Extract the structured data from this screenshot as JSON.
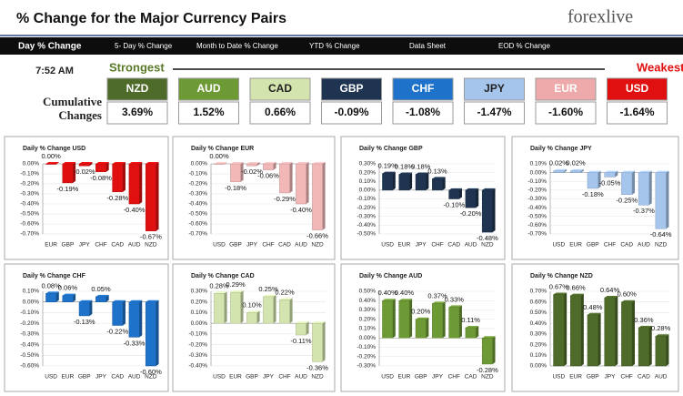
{
  "header": {
    "title": "% Change for the Major Currency Pairs",
    "logo": "forexlive"
  },
  "tabs": [
    "Day % Change",
    "5- Day % Change",
    "Month to Date % Change",
    "YTD % Change",
    "Data Sheet",
    "EOD % Change"
  ],
  "summary": {
    "time": "7:52 AM",
    "strongest": "Strongest",
    "weakest": "Weakest",
    "label": "Cumulative Changes",
    "currencies": [
      {
        "name": "NZD",
        "value": "3.69%",
        "color": "#4f6b2a",
        "text_color": "#ffffff"
      },
      {
        "name": "AUD",
        "value": "1.52%",
        "color": "#6e9a36",
        "text_color": "#ffffff"
      },
      {
        "name": "CAD",
        "value": "0.66%",
        "color": "#d4e4ae",
        "text_color": "#222222"
      },
      {
        "name": "GBP",
        "value": "-0.09%",
        "color": "#1f3450",
        "text_color": "#ffffff"
      },
      {
        "name": "CHF",
        "value": "-1.08%",
        "color": "#1f72c9",
        "text_color": "#ffffff"
      },
      {
        "name": "JPY",
        "value": "-1.47%",
        "color": "#a6c5ec",
        "text_color": "#222222"
      },
      {
        "name": "EUR",
        "value": "-1.60%",
        "color": "#eeaaaa",
        "text_color": "#ffffff"
      },
      {
        "name": "USD",
        "value": "-1.64%",
        "color": "#e01010",
        "text_color": "#ffffff"
      }
    ]
  },
  "chart_data": [
    {
      "type": "bar",
      "title": "Daily % Change USD",
      "color": "#e01010",
      "categories": [
        "EUR",
        "GBP",
        "JPY",
        "CHF",
        "CAD",
        "AUD",
        "NZD"
      ],
      "values": [
        0.0,
        -0.19,
        -0.02,
        -0.08,
        -0.28,
        -0.4,
        -0.67
      ],
      "value_labels": [
        "0.00%",
        "-0.19%",
        "-0.02%",
        "-0.08%",
        "-0.28%",
        "-0.40%",
        "-0.67%"
      ],
      "ylim": [
        -0.7,
        0.0
      ],
      "yticks": [
        {
          "value": 0.0,
          "label": "0.00%"
        },
        {
          "value": -0.1,
          "label": "-0.10%"
        },
        {
          "value": -0.2,
          "label": "-0.20%"
        },
        {
          "value": -0.3,
          "label": "-0.30%"
        },
        {
          "value": -0.4,
          "label": "-0.40%"
        },
        {
          "value": -0.5,
          "label": "-0.50%"
        },
        {
          "value": -0.6,
          "label": "-0.60%"
        },
        {
          "value": -0.7,
          "label": "-0.70%"
        }
      ]
    },
    {
      "type": "bar",
      "title": "Daily % Change EUR",
      "color": "#f2b8b8",
      "categories": [
        "USD",
        "GBP",
        "JPY",
        "CHF",
        "CAD",
        "AUD",
        "NZD"
      ],
      "values": [
        0.0,
        -0.18,
        -0.02,
        -0.06,
        -0.29,
        -0.4,
        -0.66
      ],
      "value_labels": [
        "0.00%",
        "-0.18%",
        "-0.02%",
        "-0.06%",
        "-0.29%",
        "-0.40%",
        "-0.66%"
      ],
      "ylim": [
        -0.7,
        0.0
      ],
      "yticks": [
        {
          "value": 0.0,
          "label": "0.00%"
        },
        {
          "value": -0.1,
          "label": "-0.10%"
        },
        {
          "value": -0.2,
          "label": "-0.20%"
        },
        {
          "value": -0.3,
          "label": "-0.30%"
        },
        {
          "value": -0.4,
          "label": "-0.40%"
        },
        {
          "value": -0.5,
          "label": "-0.50%"
        },
        {
          "value": -0.6,
          "label": "-0.60%"
        },
        {
          "value": -0.7,
          "label": "-0.70%"
        }
      ]
    },
    {
      "type": "bar",
      "title": "Daily % Change GBP",
      "color": "#1f3450",
      "categories": [
        "USD",
        "EUR",
        "JPY",
        "CHF",
        "CAD",
        "AUD",
        "NZD"
      ],
      "values": [
        0.19,
        0.18,
        0.18,
        0.13,
        -0.1,
        -0.2,
        -0.48
      ],
      "value_labels": [
        "0.19%",
        "0.18%",
        "0.18%",
        "0.13%",
        "-0.10%",
        "-0.20%",
        "-0.48%"
      ],
      "ylim": [
        -0.5,
        0.3
      ],
      "yticks": [
        {
          "value": 0.3,
          "label": "0.30%"
        },
        {
          "value": 0.2,
          "label": "0.20%"
        },
        {
          "value": 0.1,
          "label": "0.10%"
        },
        {
          "value": 0.0,
          "label": "0.00%"
        },
        {
          "value": -0.1,
          "label": "-0.10%"
        },
        {
          "value": -0.2,
          "label": "-0.20%"
        },
        {
          "value": -0.3,
          "label": "-0.30%"
        },
        {
          "value": -0.4,
          "label": "-0.40%"
        },
        {
          "value": -0.5,
          "label": "-0.50%"
        }
      ]
    },
    {
      "type": "bar",
      "title": "Daily % Change JPY",
      "color": "#a6c5ec",
      "categories": [
        "USD",
        "EUR",
        "GBP",
        "CHF",
        "CAD",
        "AUD",
        "NZD"
      ],
      "values": [
        0.02,
        0.02,
        -0.18,
        -0.05,
        -0.25,
        -0.37,
        -0.64
      ],
      "value_labels": [
        "0.02%",
        "0.02%",
        "-0.18%",
        "-0.05%",
        "-0.25%",
        "-0.37%",
        "-0.64%"
      ],
      "ylim": [
        -0.7,
        0.1
      ],
      "yticks": [
        {
          "value": 0.1,
          "label": "0.10%"
        },
        {
          "value": 0.0,
          "label": "0.00%"
        },
        {
          "value": -0.1,
          "label": "-0.10%"
        },
        {
          "value": -0.2,
          "label": "-0.20%"
        },
        {
          "value": -0.3,
          "label": "-0.30%"
        },
        {
          "value": -0.4,
          "label": "-0.40%"
        },
        {
          "value": -0.5,
          "label": "-0.50%"
        },
        {
          "value": -0.6,
          "label": "-0.60%"
        },
        {
          "value": -0.7,
          "label": "-0.70%"
        }
      ]
    },
    {
      "type": "bar",
      "title": "Daily % Change CHF",
      "color": "#1f72c9",
      "categories": [
        "USD",
        "EUR",
        "GBP",
        "JPY",
        "CAD",
        "AUD",
        "NZD"
      ],
      "values": [
        0.08,
        0.06,
        -0.13,
        0.05,
        -0.22,
        -0.33,
        -0.6
      ],
      "value_labels": [
        "0.08%",
        "0.06%",
        "-0.13%",
        "0.05%",
        "-0.22%",
        "-0.33%",
        "-0.60%"
      ],
      "ylim": [
        -0.6,
        0.1
      ],
      "yticks": [
        {
          "value": 0.1,
          "label": "0.10%"
        },
        {
          "value": 0.0,
          "label": "0.00%"
        },
        {
          "value": -0.1,
          "label": "-0.10%"
        },
        {
          "value": -0.2,
          "label": "-0.20%"
        },
        {
          "value": -0.3,
          "label": "-0.30%"
        },
        {
          "value": -0.4,
          "label": "-0.40%"
        },
        {
          "value": -0.5,
          "label": "-0.50%"
        },
        {
          "value": -0.6,
          "label": "-0.60%"
        }
      ]
    },
    {
      "type": "bar",
      "title": "Daily % Change CAD",
      "color": "#d4e4ae",
      "categories": [
        "USD",
        "EUR",
        "GBP",
        "JPY",
        "CHF",
        "AUD",
        "NZD"
      ],
      "values": [
        0.28,
        0.29,
        0.1,
        0.25,
        0.22,
        -0.11,
        -0.36
      ],
      "value_labels": [
        "0.28%",
        "0.29%",
        "0.10%",
        "0.25%",
        "0.22%",
        "-0.11%",
        "-0.36%"
      ],
      "ylim": [
        -0.4,
        0.3
      ],
      "yticks": [
        {
          "value": 0.3,
          "label": "0.30%"
        },
        {
          "value": 0.2,
          "label": "0.20%"
        },
        {
          "value": 0.1,
          "label": "0.10%"
        },
        {
          "value": 0.0,
          "label": "0.00%"
        },
        {
          "value": -0.1,
          "label": "-0.10%"
        },
        {
          "value": -0.2,
          "label": "-0.20%"
        },
        {
          "value": -0.3,
          "label": "-0.30%"
        },
        {
          "value": -0.4,
          "label": "-0.40%"
        }
      ]
    },
    {
      "type": "bar",
      "title": "Daily % Change AUD",
      "color": "#6e9a36",
      "categories": [
        "USD",
        "EUR",
        "GBP",
        "JPY",
        "CHF",
        "CAD",
        "NZD"
      ],
      "values": [
        0.4,
        0.4,
        0.2,
        0.37,
        0.33,
        0.11,
        -0.28
      ],
      "value_labels": [
        "0.40%",
        "0.40%",
        "0.20%",
        "0.37%",
        "0.33%",
        "0.11%",
        "-0.28%"
      ],
      "ylim": [
        -0.3,
        0.5
      ],
      "yticks": [
        {
          "value": 0.5,
          "label": "0.50%"
        },
        {
          "value": 0.4,
          "label": "0.40%"
        },
        {
          "value": 0.3,
          "label": "0.30%"
        },
        {
          "value": 0.2,
          "label": "0.20%"
        },
        {
          "value": 0.1,
          "label": "0.10%"
        },
        {
          "value": 0.0,
          "label": "0.00%"
        },
        {
          "value": -0.1,
          "label": "-0.10%"
        },
        {
          "value": -0.2,
          "label": "-0.20%"
        },
        {
          "value": -0.3,
          "label": "-0.30%"
        }
      ]
    },
    {
      "type": "bar",
      "title": "Daily % Change NZD",
      "color": "#4f6b2a",
      "categories": [
        "USD",
        "EUR",
        "GBP",
        "JPY",
        "CHF",
        "CAD",
        "AUD"
      ],
      "values": [
        0.67,
        0.66,
        0.48,
        0.64,
        0.6,
        0.36,
        0.28
      ],
      "value_labels": [
        "0.67%",
        "0.66%",
        "0.48%",
        "0.64%",
        "0.60%",
        "0.36%",
        "0.28%"
      ],
      "ylim": [
        0.0,
        0.7
      ],
      "yticks": [
        {
          "value": 0.7,
          "label": "0.70%"
        },
        {
          "value": 0.6,
          "label": "0.60%"
        },
        {
          "value": 0.5,
          "label": "0.50%"
        },
        {
          "value": 0.4,
          "label": "0.40%"
        },
        {
          "value": 0.3,
          "label": "0.30%"
        },
        {
          "value": 0.2,
          "label": "0.20%"
        },
        {
          "value": 0.1,
          "label": "0.10%"
        },
        {
          "value": 0.0,
          "label": "0.00%"
        }
      ]
    }
  ]
}
